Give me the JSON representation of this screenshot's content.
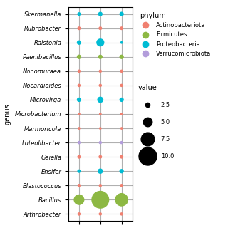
{
  "chart_data": {
    "type": "bubble",
    "y_label": "genus",
    "categories": [
      "Skermanella",
      "Rubrobacter",
      "Ralstonia",
      "Paenibacillus",
      "Nonomuraea",
      "Nocardioides",
      "Microvirga",
      "Microbacterium",
      "Marmoricola",
      "Luteolibacter",
      "Gaiella",
      "Ensifer",
      "Blastococcus",
      "Bacillus",
      "Arthrobacter"
    ],
    "xlim": [
      0.5,
      3.5
    ],
    "xticks": [
      1,
      2,
      3
    ],
    "tick_labels": "y",
    "grid": true,
    "legend": "upper left",
    "legend_title": "phylum",
    "series": [
      {
        "name": "Actinobacteriota",
        "color": "#f08070",
        "x": [
          1,
          2,
          3,
          1,
          2,
          3,
          1,
          2,
          3,
          1,
          2,
          3,
          1,
          2,
          3,
          1,
          2,
          3,
          1,
          2,
          3,
          1,
          2,
          3
        ],
        "y": [
          "Rubrobacter",
          "Rubrobacter",
          "Rubrobacter",
          "Nonomuraea",
          "Nonomuraea",
          "Nonomuraea",
          "Nocardioides",
          "Nocardioides",
          "Nocardioides",
          "Microbacterium",
          "Microbacterium",
          "Microbacterium",
          "Marmoricola",
          "Marmoricola",
          "Marmoricola",
          "Gaiella",
          "Gaiella",
          "Gaiella",
          "Blastococcus",
          "Blastococcus",
          "Blastococcus",
          "Arthrobacter",
          "Arthrobacter",
          "Arthrobacter"
        ],
        "sizes": [
          2.0,
          2.0,
          2.0,
          1.8,
          1.8,
          1.8,
          1.8,
          1.8,
          1.8,
          1.5,
          1.5,
          1.5,
          1.5,
          1.5,
          1.5,
          2.0,
          2.0,
          2.0,
          1.8,
          1.8,
          1.8,
          1.8,
          1.8,
          1.8
        ]
      },
      {
        "name": "Firmicutes",
        "color": "#8db843",
        "x": [
          1,
          2,
          3,
          1,
          2,
          3
        ],
        "y": [
          "Paenibacillus",
          "Paenibacillus",
          "Paenibacillus",
          "Bacillus",
          "Bacillus",
          "Bacillus"
        ],
        "sizes": [
          2.5,
          2.5,
          2.5,
          6.0,
          10.0,
          7.5
        ]
      },
      {
        "name": "Proteobacteria",
        "color": "#00bcd4",
        "x": [
          1,
          2,
          3,
          1,
          2,
          3,
          1,
          2,
          3,
          1,
          2,
          3
        ],
        "y": [
          "Skermanella",
          "Skermanella",
          "Skermanella",
          "Ralstonia",
          "Ralstonia",
          "Ralstonia",
          "Microvirga",
          "Microvirga",
          "Microvirga",
          "Ensifer",
          "Ensifer",
          "Ensifer"
        ],
        "sizes": [
          2.0,
          2.5,
          2.5,
          2.5,
          4.5,
          1.5,
          2.5,
          3.5,
          2.5,
          2.0,
          3.0,
          2.5
        ]
      },
      {
        "name": "Verrucomicrobiota",
        "color": "#b39ddb",
        "x": [
          1,
          2,
          3
        ],
        "y": [
          "Luteolibacter",
          "Luteolibacter",
          "Luteolibacter"
        ],
        "sizes": [
          1.8,
          1.8,
          1.8
        ]
      }
    ],
    "size_legend": {
      "title": "value",
      "values": [
        {
          "value": 2.5,
          "label": "2.5"
        },
        {
          "value": 5.0,
          "label": "5.0"
        },
        {
          "value": 7.5,
          "label": "7.5"
        },
        {
          "value": 10.0,
          "label": "10.0"
        }
      ]
    }
  }
}
